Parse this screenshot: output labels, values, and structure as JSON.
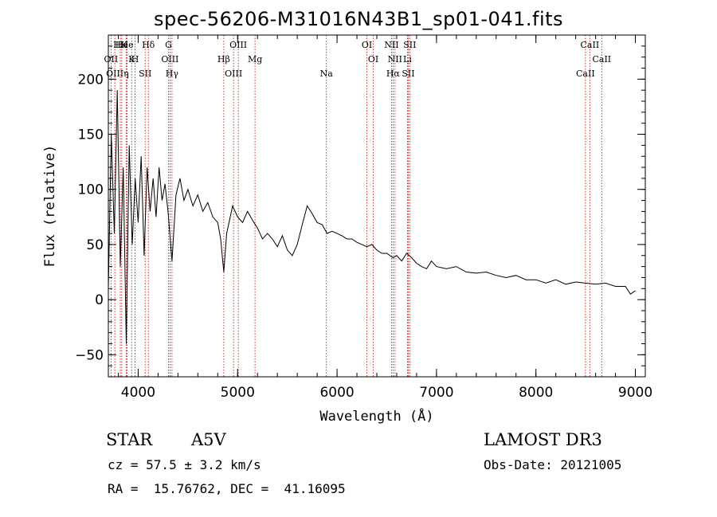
{
  "chart_data": {
    "type": "line",
    "title": "spec-56206-M31016N43B1_sp01-041.fits",
    "xlabel": "Wavelength (Å)",
    "ylabel": "Flux (relative)",
    "xlim": [
      3700,
      9100
    ],
    "ylim": [
      -70,
      240
    ],
    "x_ticks": [
      4000,
      5000,
      6000,
      7000,
      8000,
      9000
    ],
    "y_ticks": [
      -50,
      0,
      50,
      100,
      150,
      200
    ],
    "x_tick_labels": [
      "4000",
      "5000",
      "6000",
      "7000",
      "8000",
      "9000"
    ],
    "y_tick_labels": [
      "−50",
      "0",
      "50",
      "100",
      "150",
      "200"
    ],
    "series": [
      {
        "name": "spectrum",
        "x": [
          3700,
          3730,
          3760,
          3790,
          3820,
          3850,
          3880,
          3910,
          3940,
          3970,
          4000,
          4030,
          4060,
          4090,
          4120,
          4150,
          4180,
          4210,
          4240,
          4270,
          4300,
          4340,
          4380,
          4420,
          4460,
          4500,
          4550,
          4600,
          4650,
          4700,
          4750,
          4800,
          4830,
          4861,
          4890,
          4950,
          5000,
          5050,
          5100,
          5150,
          5200,
          5250,
          5300,
          5350,
          5400,
          5450,
          5500,
          5550,
          5600,
          5650,
          5700,
          5750,
          5800,
          5850,
          5900,
          5950,
          6000,
          6050,
          6100,
          6150,
          6200,
          6250,
          6300,
          6350,
          6400,
          6450,
          6500,
          6563,
          6600,
          6650,
          6700,
          6750,
          6800,
          6850,
          6900,
          6950,
          7000,
          7100,
          7200,
          7300,
          7400,
          7500,
          7600,
          7700,
          7800,
          7900,
          8000,
          8100,
          8200,
          8300,
          8400,
          8500,
          8600,
          8700,
          8800,
          8900,
          8950,
          9000
        ],
        "y": [
          10,
          150,
          60,
          190,
          30,
          120,
          -40,
          140,
          50,
          110,
          70,
          130,
          40,
          120,
          80,
          110,
          75,
          120,
          90,
          105,
          80,
          35,
          95,
          110,
          90,
          100,
          85,
          95,
          80,
          88,
          75,
          70,
          55,
          25,
          60,
          85,
          75,
          70,
          80,
          72,
          65,
          55,
          60,
          55,
          48,
          58,
          45,
          40,
          50,
          68,
          85,
          78,
          70,
          68,
          60,
          62,
          60,
          58,
          55,
          55,
          52,
          50,
          48,
          50,
          45,
          42,
          42,
          38,
          40,
          35,
          42,
          38,
          33,
          30,
          28,
          35,
          30,
          28,
          30,
          25,
          24,
          25,
          22,
          20,
          22,
          18,
          18,
          15,
          18,
          14,
          16,
          15,
          14,
          15,
          12,
          12,
          5,
          8
        ]
      }
    ],
    "lines": [
      {
        "label": "HK",
        "x": 3820
      },
      {
        "label": "OII",
        "x": 3727
      },
      {
        "label": "OIII",
        "x": 3765
      },
      {
        "label": "He",
        "x": 3835
      },
      {
        "label": "K",
        "x": 3934
      },
      {
        "label": "η",
        "x": 3880
      },
      {
        "label": "He",
        "x": 3889
      },
      {
        "label": "H",
        "x": 3969
      },
      {
        "label": "SII",
        "x": 4070
      },
      {
        "label": "Hδ",
        "x": 4102
      },
      {
        "label": "OIII",
        "x": 4320
      },
      {
        "label": "Hγ",
        "x": 4340
      },
      {
        "label": "G",
        "x": 4305
      },
      {
        "label": "Hβ",
        "x": 4861
      },
      {
        "label": "OIII",
        "x": 4959
      },
      {
        "label": "OIII",
        "x": 5007
      },
      {
        "label": "Mg",
        "x": 5175
      },
      {
        "label": "Na",
        "x": 5893
      },
      {
        "label": "OI",
        "x": 6300
      },
      {
        "label": "OI",
        "x": 6364
      },
      {
        "label": "Hα",
        "x": 6563
      },
      {
        "label": "NII",
        "x": 6548
      },
      {
        "label": "NII",
        "x": 6583
      },
      {
        "label": "SII",
        "x": 6716
      },
      {
        "label": "SII",
        "x": 6731
      },
      {
        "label": "Li",
        "x": 6708
      },
      {
        "label": "CaII",
        "x": 8498
      },
      {
        "label": "CaII",
        "x": 8542
      },
      {
        "label": "CaII",
        "x": 8662
      }
    ]
  },
  "info": {
    "object_type": "STAR",
    "subclass": "A5V",
    "survey": "LAMOST DR3",
    "cz": "cz = 57.5 ± 3.2 km/s",
    "obs_date": "Obs-Date: 20121005",
    "radec": "RA =  15.76762, DEC =  41.16095"
  },
  "colors": {
    "spectrum": "#000000",
    "line_marker": "#c00000",
    "axes": "#000000"
  }
}
